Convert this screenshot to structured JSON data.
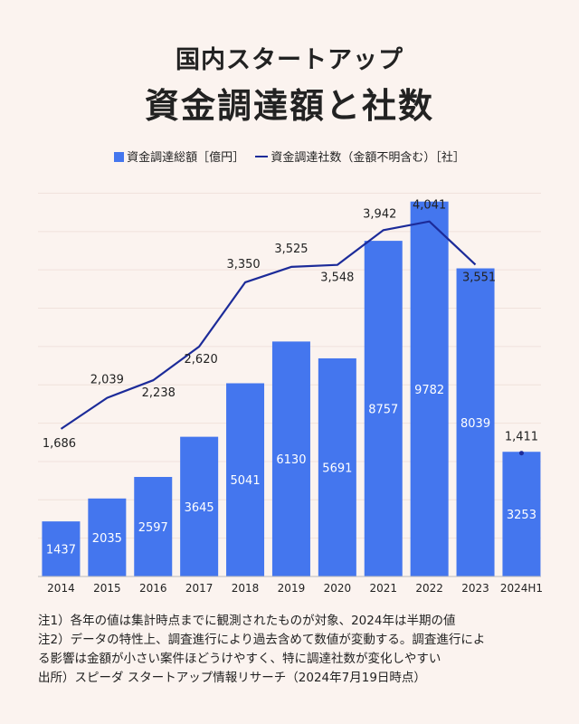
{
  "title_line1": "国内スタートアップ",
  "title_line2": "資金調達額と社数",
  "legend": {
    "bar_label": "資金調達総額［億円］",
    "line_label": "資金調達社数（金額不明含む）［社］"
  },
  "colors": {
    "bar": "#4476ee",
    "line": "#1c2b99",
    "background": "#fbf3ef"
  },
  "chart_data": {
    "type": "bar",
    "categories": [
      "2014",
      "2015",
      "2016",
      "2017",
      "2018",
      "2019",
      "2020",
      "2021",
      "2022",
      "2023",
      "2024H1"
    ],
    "series": [
      {
        "name": "資金調達総額［億円］",
        "type": "bar",
        "values": [
          1437,
          2035,
          2597,
          3645,
          5041,
          6130,
          5691,
          8757,
          9782,
          8039,
          3253
        ]
      },
      {
        "name": "資金調達社数（金額不明含む）［社］",
        "type": "line",
        "values": [
          1686,
          2039,
          2238,
          2620,
          3350,
          3525,
          3548,
          3942,
          4041,
          3551,
          1411
        ],
        "labels": [
          "1,686",
          "2,039",
          "2,238",
          "2,620",
          "3,350",
          "3,525",
          "3,548",
          "3,942",
          "4,041",
          "3,551",
          "1,411"
        ]
      }
    ],
    "bar_ylim": [
      0,
      10200
    ],
    "line_ylim": [
      1110,
      4500
    ],
    "line_break_after_index": 9
  },
  "notes": [
    "注1）各年の値は集計時点までに観測されたものが対象、2024年は半期の値",
    "注2）データの特性上、調査進行により過去含めて数値が変動する。調査進行によ",
    "る影響は金額が小さい案件ほどうけやすく、特に調達社数が変化しやすい",
    "出所）スピーダ スタートアップ情報リサーチ（2024年7月19日時点）"
  ]
}
